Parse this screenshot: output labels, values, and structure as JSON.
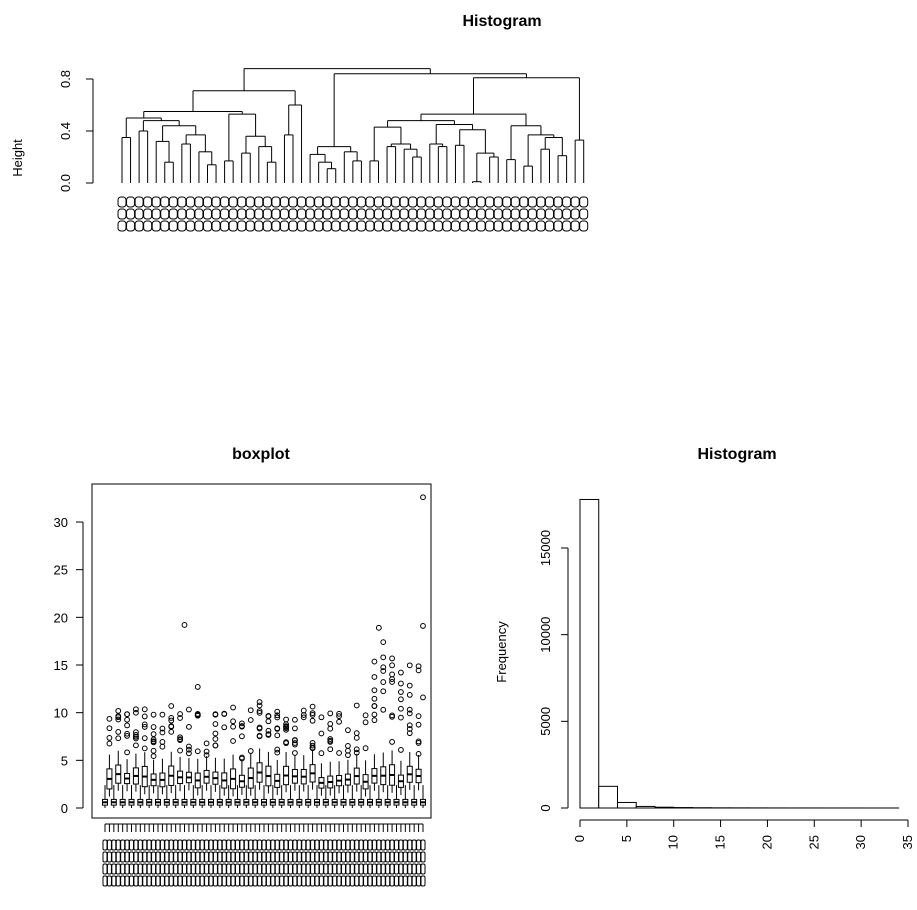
{
  "charts": [
    {
      "id": "dendrogram",
      "type": "dendrogram",
      "title": "Histogram",
      "ylabel": "Height",
      "ylim": [
        0,
        0.85
      ],
      "yticks": [
        "0.0",
        "0.4",
        "0.8"
      ],
      "leaf_count": 73
    },
    {
      "id": "boxplot",
      "type": "boxplot",
      "title": "boxplot",
      "ylim": [
        0,
        34
      ],
      "yticks": [
        "0",
        "5",
        "10",
        "15",
        "20",
        "25",
        "30"
      ],
      "box_count": 73,
      "max_outlier": 32.6
    },
    {
      "id": "histogram",
      "type": "bar",
      "title": "Histogram",
      "xlabel": "",
      "ylabel": "Frequency",
      "xticks": [
        "0",
        "5",
        "10",
        "15",
        "20",
        "25",
        "30",
        "35"
      ],
      "yticks": [
        "0",
        "5000",
        "10000",
        "15000"
      ],
      "xlim": [
        0,
        35
      ],
      "ylim": [
        0,
        18000
      ],
      "bin_width": 2,
      "bin_starts": [
        0,
        2,
        4,
        6,
        8,
        10,
        12,
        14,
        16,
        18,
        20,
        22,
        24,
        26,
        28,
        30,
        32
      ],
      "values": [
        17800,
        1250,
        320,
        90,
        45,
        25,
        15,
        10,
        8,
        6,
        4,
        3,
        3,
        2,
        2,
        1,
        1
      ]
    }
  ],
  "chart_data": [
    {
      "type": "dendrogram",
      "title": "Histogram",
      "ylabel": "Height",
      "ylim": [
        0,
        0.85
      ],
      "yticks": [
        0.0,
        0.4,
        0.8
      ],
      "leaves": 73
    },
    {
      "type": "boxplot",
      "title": "boxplot",
      "ylim": [
        0,
        34
      ],
      "yticks": [
        0,
        5,
        10,
        15,
        20,
        25,
        30
      ],
      "boxes": 73
    },
    {
      "type": "bar",
      "title": "Histogram",
      "ylabel": "Frequency",
      "xlim": [
        0,
        35
      ],
      "ylim": [
        0,
        18000
      ],
      "bin_width": 2,
      "x": [
        0,
        2,
        4,
        6,
        8,
        10,
        12,
        14,
        16,
        18,
        20,
        22,
        24,
        26,
        28,
        30,
        32
      ],
      "values": [
        17800,
        1250,
        320,
        90,
        45,
        25,
        15,
        10,
        8,
        6,
        4,
        3,
        3,
        2,
        2,
        1,
        1
      ]
    }
  ]
}
